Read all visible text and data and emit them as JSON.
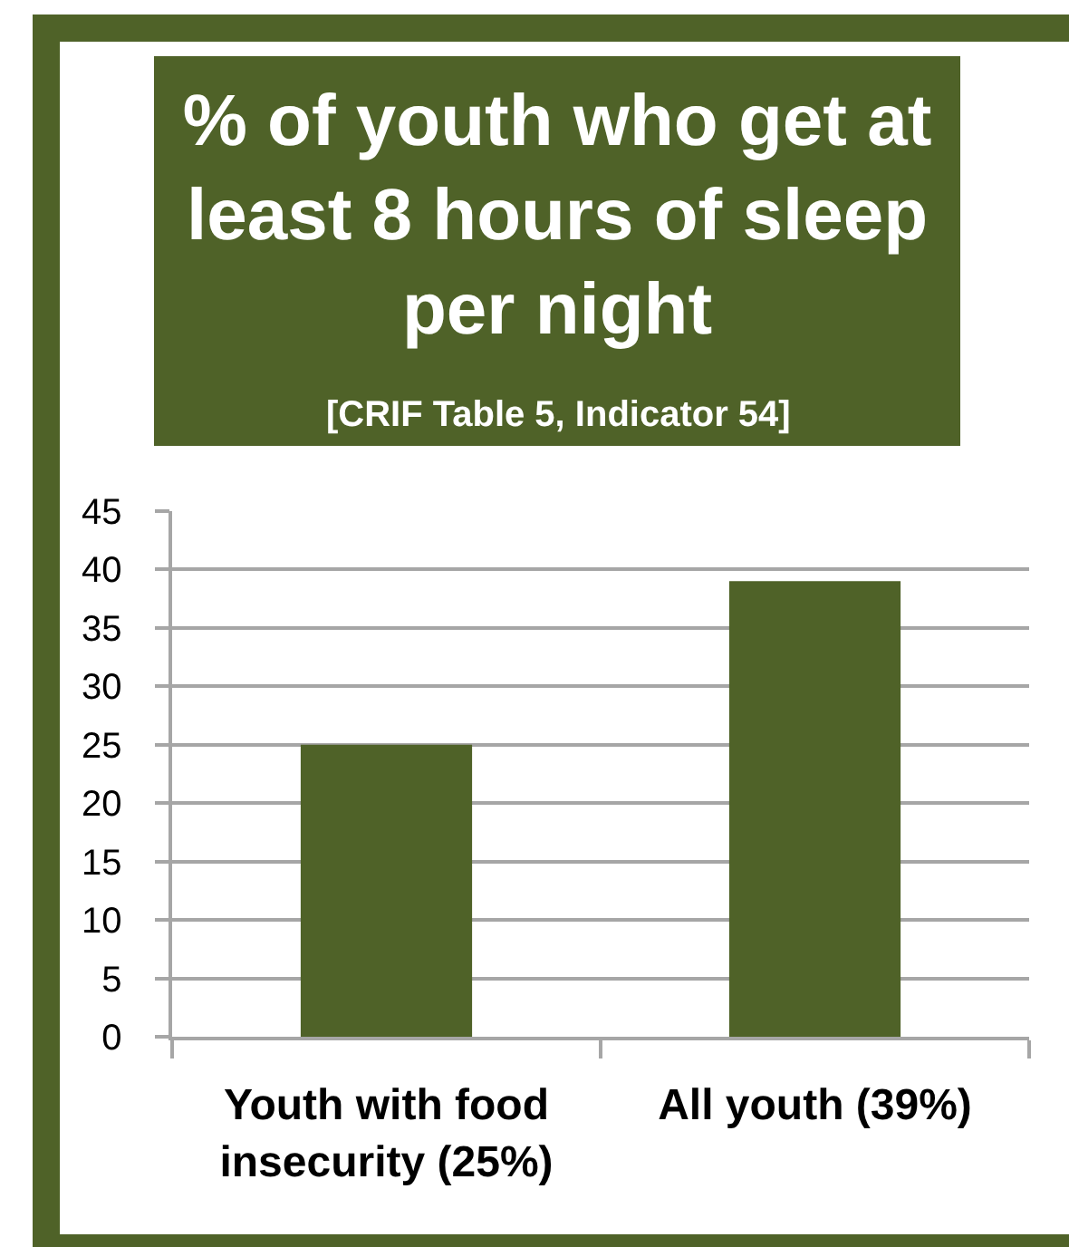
{
  "chart_data": {
    "type": "bar",
    "title": "% of youth who get at least 8 hours of sleep per night",
    "subtitle": "[CRIF Table 5, Indicator 54]",
    "categories": [
      "Youth with food insecurity (25%)",
      "All youth (39%)"
    ],
    "values": [
      25,
      39
    ],
    "color": "#4f6228",
    "ylim": [
      0,
      45
    ],
    "yticks": [
      0,
      5,
      10,
      15,
      20,
      25,
      30,
      35,
      40,
      45
    ],
    "grid": "y"
  }
}
